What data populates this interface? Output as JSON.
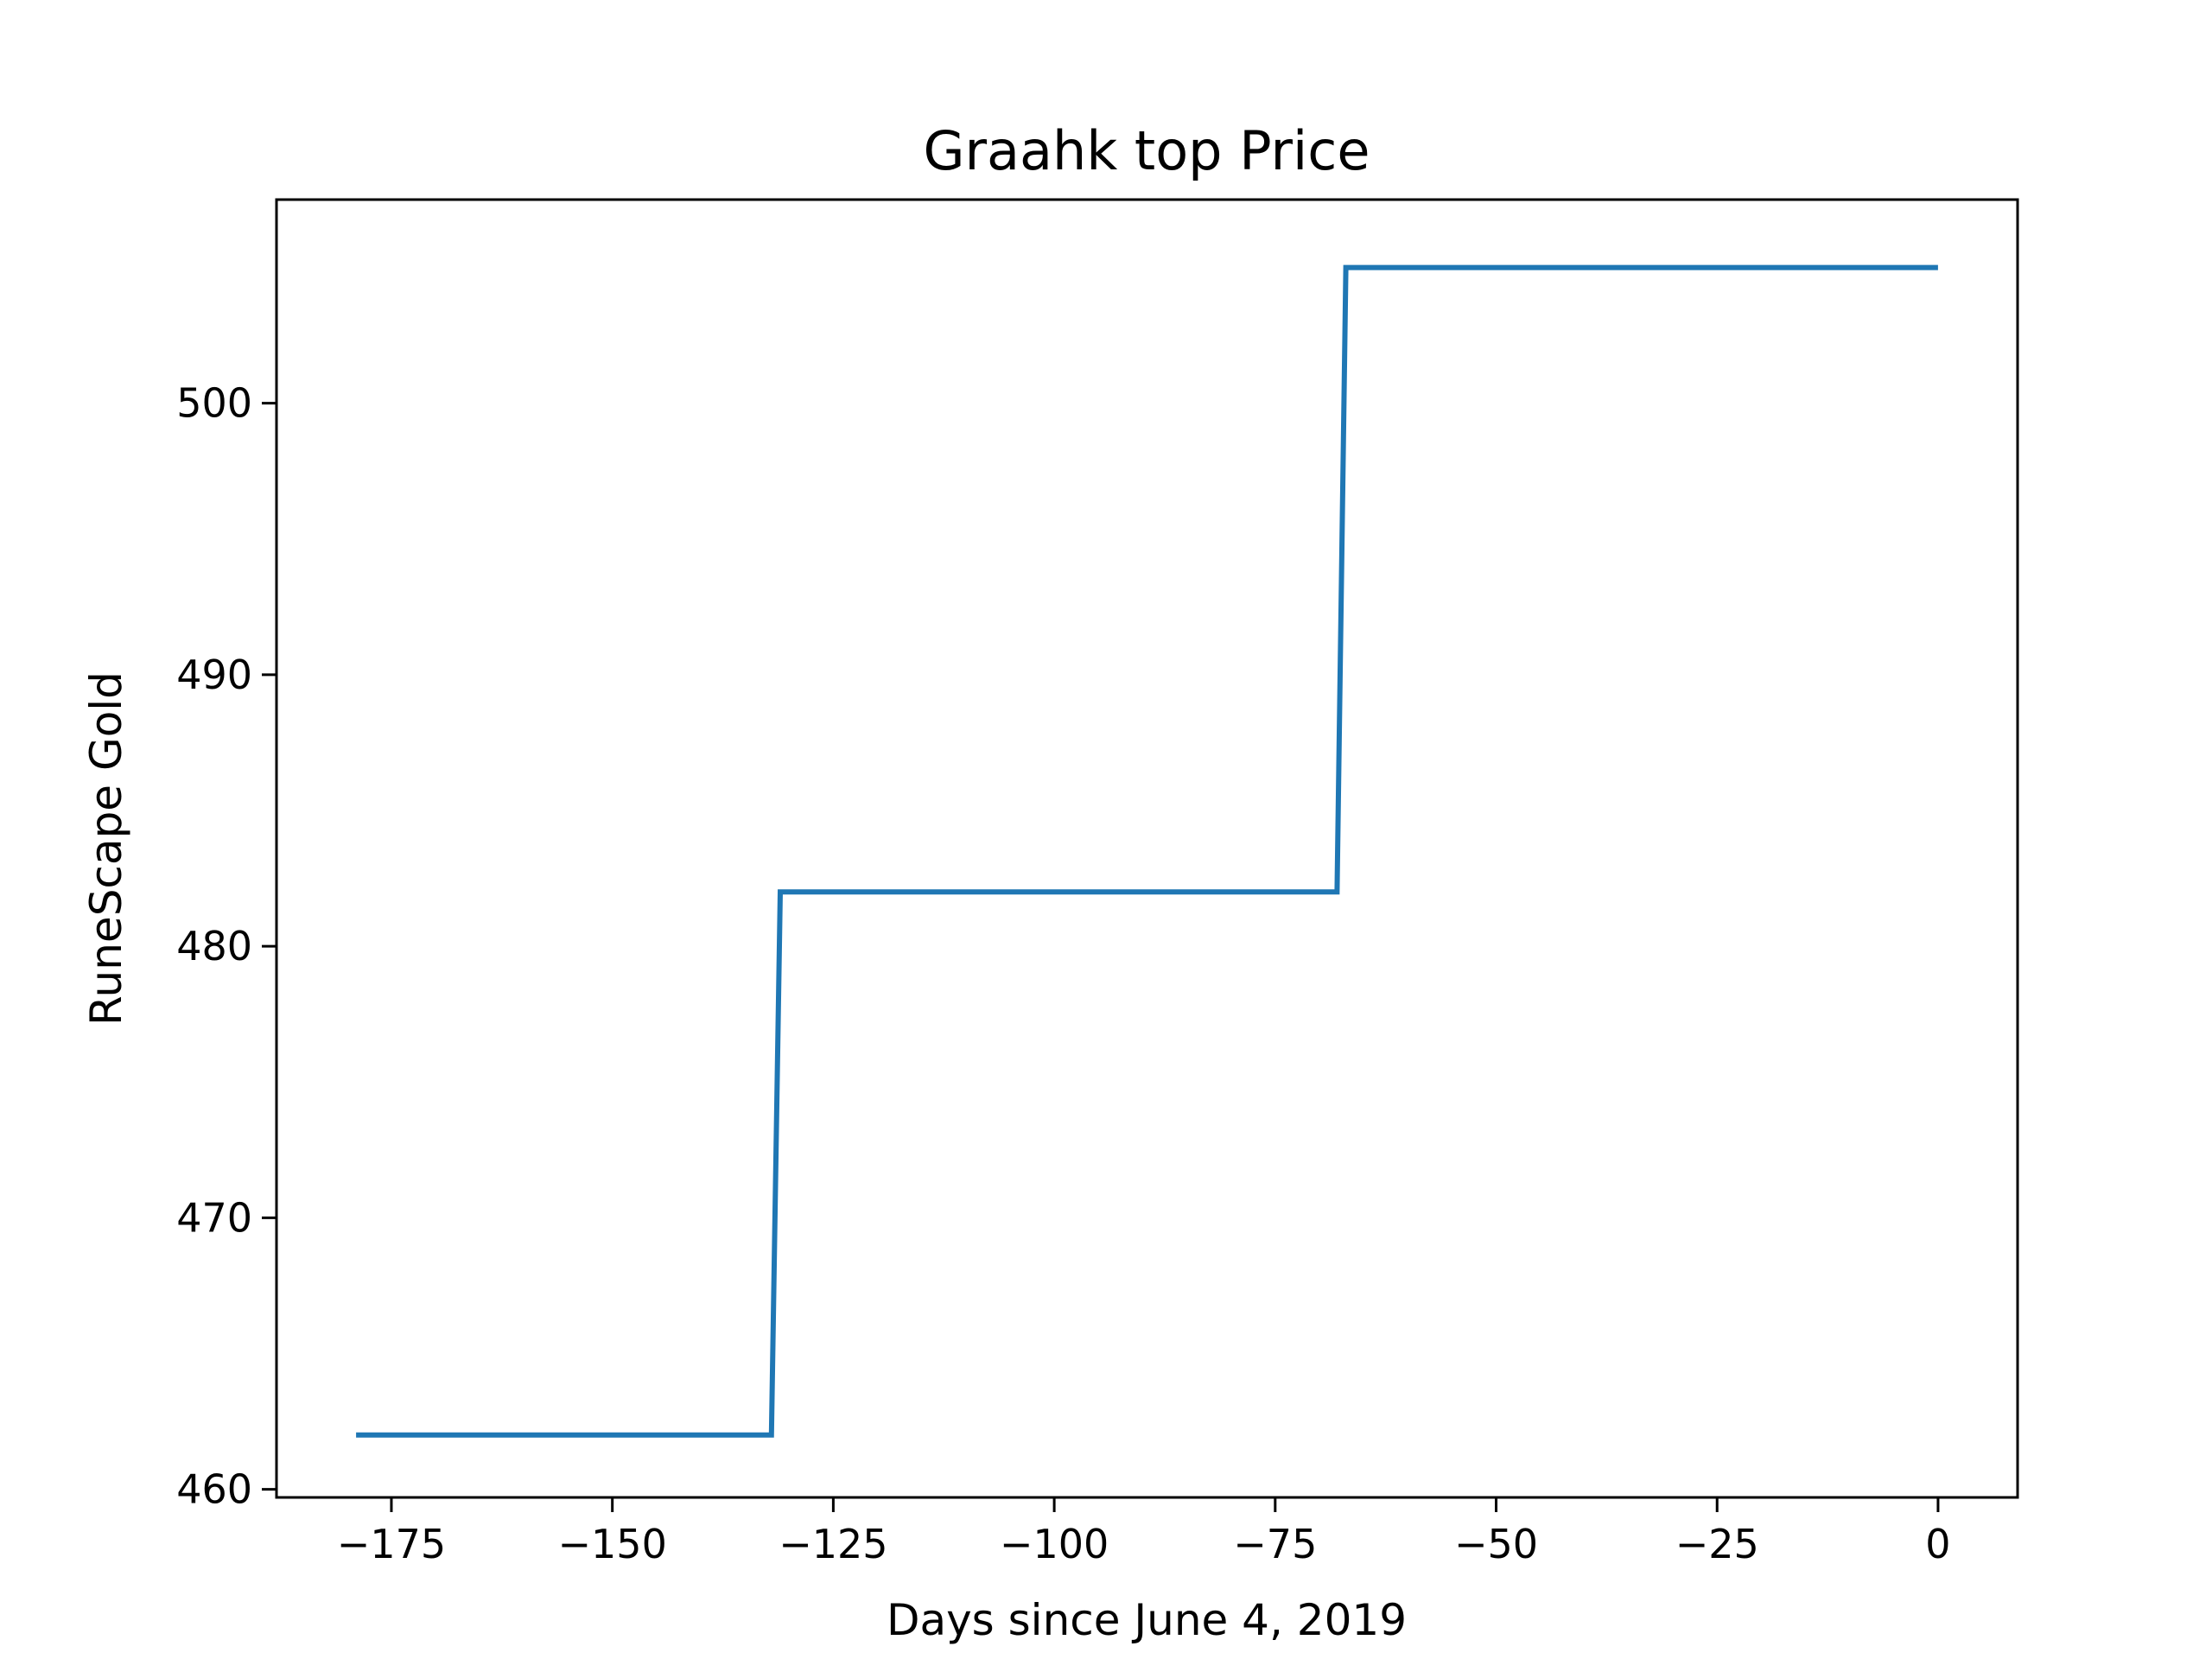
{
  "chart_data": {
    "type": "line",
    "title": "Graahk top Price",
    "xlabel": "Days since June 4, 2019",
    "ylabel": "RuneScape Gold",
    "xlim": [
      -188,
      9
    ],
    "ylim": [
      459.7,
      507.5
    ],
    "xticks": [
      -175,
      -150,
      -125,
      -100,
      -75,
      -50,
      -25,
      0
    ],
    "xtick_labels": [
      "−175",
      "−150",
      "−125",
      "−100",
      "−75",
      "−50",
      "−25",
      "0"
    ],
    "yticks": [
      460,
      470,
      480,
      490,
      500
    ],
    "ytick_labels": [
      "460",
      "470",
      "480",
      "490",
      "500"
    ],
    "grid": false,
    "series": [
      {
        "color": "#1f77b4",
        "x": [
          -179,
          -132,
          -131,
          -68,
          -67,
          0
        ],
        "y": [
          462,
          462,
          482,
          482,
          505,
          505
        ]
      }
    ]
  }
}
